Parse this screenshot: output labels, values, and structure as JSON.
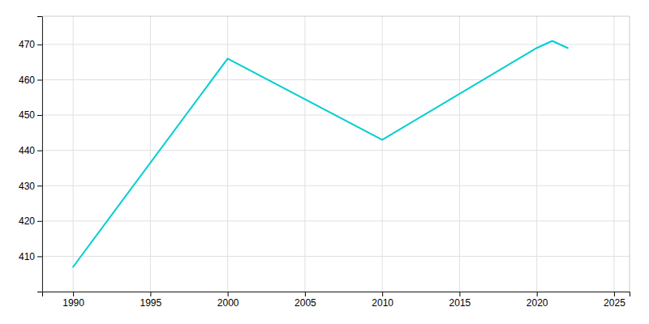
{
  "chart_data": {
    "type": "line",
    "x": [
      1990,
      2000,
      2010,
      2020,
      2021,
      2022
    ],
    "values": [
      407,
      466,
      443,
      469,
      471,
      469
    ],
    "color": "#00CED1",
    "xlim": [
      1988,
      2026
    ],
    "ylim": [
      400,
      478
    ],
    "xticks": [
      1990,
      1995,
      2000,
      2005,
      2010,
      2015,
      2020,
      2025
    ],
    "yticks": [
      410,
      420,
      430,
      440,
      450,
      460,
      470
    ],
    "grid": true
  }
}
